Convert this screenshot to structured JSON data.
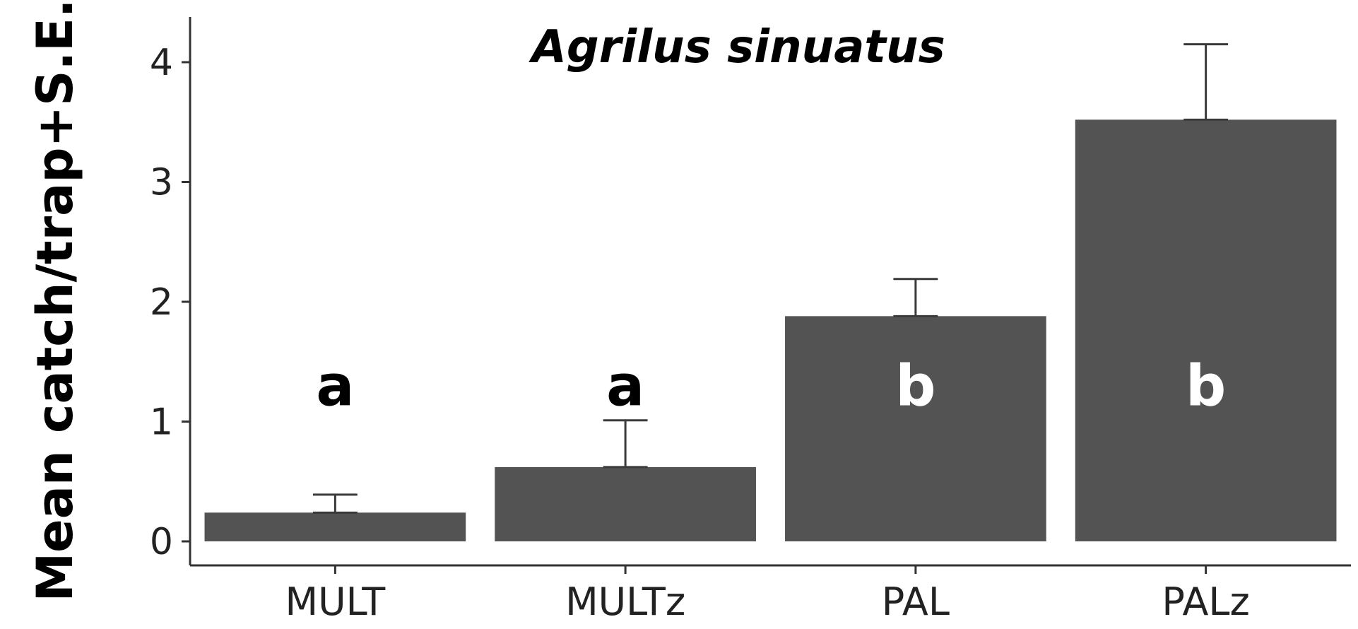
{
  "chart_data": {
    "type": "bar",
    "title": "Agrilus sinuatus",
    "xlabel": "",
    "ylabel": "Mean catch/trap+S.E.",
    "categories": [
      "MULT",
      "MULTz",
      "PAL",
      "PALz"
    ],
    "values": [
      0.24,
      0.62,
      1.88,
      3.52
    ],
    "errors": [
      0.15,
      0.39,
      0.31,
      0.63
    ],
    "significance": [
      "a",
      "a",
      "b",
      "b"
    ],
    "ylim": [
      0,
      4.3
    ],
    "yticks": [
      "0",
      "1",
      "2",
      "3",
      "4"
    ],
    "grid": false,
    "legend": "none",
    "colors": {
      "bar": "#535353",
      "error_bar": "#3a3a3a",
      "axis": "#333333",
      "label_outside": "#000000",
      "label_inside": "#ffffff"
    }
  }
}
